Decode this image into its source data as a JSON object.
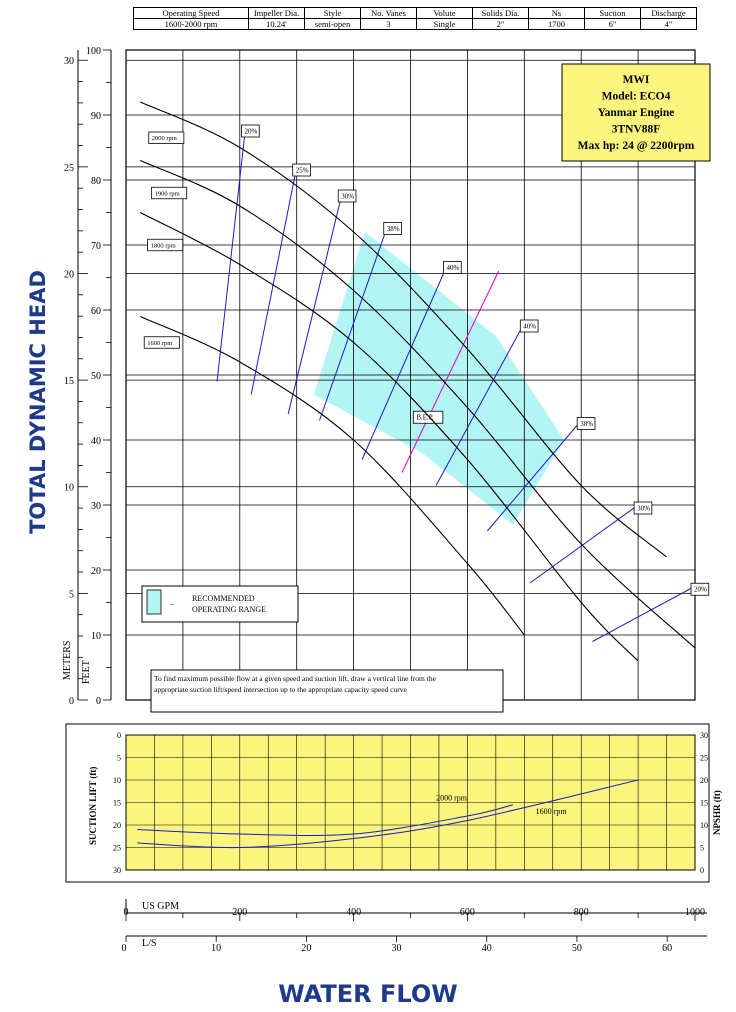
{
  "spec_table": {
    "headers": [
      "Operating Speed",
      "Impeller Dia.",
      "Style",
      "No. Vanes",
      "Volute",
      "Solids Dia.",
      "Ns",
      "Suction",
      "Discharge"
    ],
    "values": [
      "1600-2000 rpm",
      "10.24'",
      "semi-open",
      "3",
      "Single",
      "2\"",
      "1700",
      "6\"",
      "4\""
    ]
  },
  "info_box": [
    "MWI",
    "Model: ECO4",
    "Yanmar Engine",
    "3TNV88F",
    "Max hp: 24 @ 2200rpm"
  ],
  "legend": {
    "dash": "–",
    "line1": "RECOMMENDED",
    "line2": "OPERATING RANGE"
  },
  "note": {
    "line1": "To find maximum possible flow at a given speed and suction lift, draw a vertical line from the",
    "line2": "appropriate suction lift/speed intersection up to the appropriate capacity speed curve"
  },
  "labels": {
    "y_title": "TOTAL DYNAMIC HEAD",
    "x_title": "WATER FLOW",
    "meters": "METERS",
    "feet": "FEET",
    "us_gpm": "US GPM",
    "ls": "L/S",
    "suction_lift": "SUCTION LIFT (ft)",
    "npshr": "NPSHR (ft)",
    "bep": "B.E.P."
  },
  "colors": {
    "operating_range": "#b3f5f5",
    "efficiency_lines": "#1a1acc",
    "bep_line": "#e000c0",
    "info_box_bg": "#fbf57e",
    "lower_panel_bg": "#fbf57e",
    "axis_title": "#1f3a8a"
  },
  "chart_data": [
    {
      "type": "line",
      "x_unit": "US GPM",
      "y_unit": "feet",
      "xlim": [
        0,
        1000
      ],
      "ylim": [
        0,
        100
      ],
      "x_ticks": [
        0,
        200,
        400,
        600,
        800,
        1000
      ],
      "y_ticks_feet": [
        0,
        10,
        20,
        30,
        40,
        50,
        60,
        70,
        80,
        90,
        100
      ],
      "y_ticks_meters": [
        0,
        5,
        10,
        15,
        20,
        25,
        30
      ],
      "ls_ticks": [
        0,
        10,
        20,
        30,
        40,
        50,
        60
      ],
      "series": [
        {
          "name": "2000 rpm",
          "x": [
            25,
            200,
            400,
            600,
            800,
            950
          ],
          "y": [
            92,
            85,
            72,
            54,
            33,
            22
          ]
        },
        {
          "name": "1900 rpm",
          "x": [
            25,
            200,
            400,
            600,
            800,
            1000
          ],
          "y": [
            83,
            76,
            63,
            45,
            24,
            8
          ]
        },
        {
          "name": "1800 rpm",
          "x": [
            25,
            200,
            400,
            600,
            800,
            900
          ],
          "y": [
            75,
            67,
            55,
            37,
            15,
            6
          ]
        },
        {
          "name": "1600 rpm",
          "x": [
            25,
            200,
            400,
            600,
            700
          ],
          "y": [
            59,
            52,
            40,
            21,
            10
          ]
        }
      ],
      "efficiency_lines": [
        {
          "label": "20%",
          "x": [
            160,
            210
          ],
          "y": [
            49,
            88
          ]
        },
        {
          "label": "25%",
          "x": [
            220,
            300
          ],
          "y": [
            47,
            82
          ]
        },
        {
          "label": "30%",
          "x": [
            285,
            380
          ],
          "y": [
            44,
            78
          ]
        },
        {
          "label": "38%",
          "x": [
            340,
            460
          ],
          "y": [
            43,
            73
          ]
        },
        {
          "label": "40%",
          "x": [
            415,
            565
          ],
          "y": [
            37,
            67
          ]
        },
        {
          "label": "40%",
          "x": [
            545,
            700
          ],
          "y": [
            33,
            58
          ]
        },
        {
          "label": "38%",
          "x": [
            635,
            800
          ],
          "y": [
            26,
            43
          ]
        },
        {
          "label": "30%",
          "x": [
            710,
            900
          ],
          "y": [
            18,
            30
          ]
        },
        {
          "label": "20%",
          "x": [
            820,
            1000
          ],
          "y": [
            9,
            17.5
          ]
        }
      ],
      "bep_line": {
        "label": "B.E.P.",
        "x": [
          485,
          655
        ],
        "y": [
          35,
          66
        ]
      },
      "operating_range": {
        "x": [
          330,
          420,
          650,
          770,
          680,
          520
        ],
        "y": [
          47,
          72,
          56,
          40,
          27,
          38
        ]
      }
    },
    {
      "type": "line",
      "x_unit": "US GPM",
      "y_left": "Suction Lift (ft)",
      "y_right": "NPSHR (ft)",
      "ylim_suction": [
        0,
        30
      ],
      "ylim_npshr": [
        0,
        30
      ],
      "suction_ticks": [
        0,
        5,
        10,
        15,
        20,
        25,
        30
      ],
      "npshr_ticks": [
        0,
        5,
        10,
        15,
        20,
        25,
        30
      ],
      "series": [
        {
          "name": "2000 rpm",
          "x": [
            20,
            200,
            400,
            600,
            680
          ],
          "y_npshr": [
            9,
            8,
            8,
            12,
            14.5
          ]
        },
        {
          "name": "1600 rpm",
          "x": [
            20,
            200,
            400,
            600,
            900
          ],
          "y_npshr": [
            6,
            5,
            7,
            11,
            20
          ]
        }
      ]
    }
  ]
}
